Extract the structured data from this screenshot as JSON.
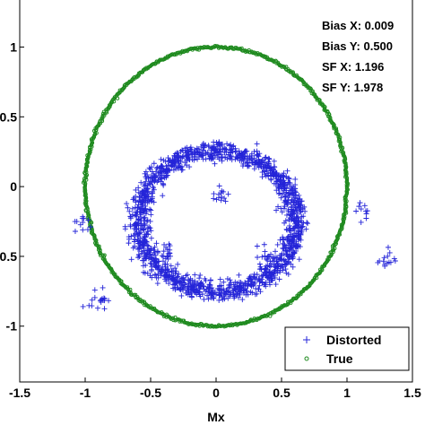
{
  "chart_data": {
    "type": "scatter",
    "title": "",
    "xlabel": "Mx",
    "ylabel": "",
    "xlim": [
      -1.5,
      1.5
    ],
    "ylim": [
      -1.4,
      1.35
    ],
    "x_ticks": [
      "-1.5",
      "-1",
      "-0.5",
      "0",
      "0.5",
      "1",
      "1.5"
    ],
    "x_tick_values": [
      -1.5,
      -1,
      -0.5,
      0,
      0.5,
      1,
      1.5
    ],
    "y_ticks": [
      "1",
      "0.5",
      "0",
      "-0.5",
      "-1"
    ],
    "y_tick_values": [
      1,
      0.5,
      0,
      -0.5,
      -1
    ],
    "grid": false,
    "legend_position": "bottom-right",
    "annotations": [
      "Bias X: 0.009",
      "Bias Y: 0.500",
      "SF X: 1.196",
      "SF Y: 1.978"
    ],
    "series": [
      {
        "name": "Distorted",
        "marker": "+",
        "color": "#2424d8",
        "shape": "ellipse",
        "center": [
          0.009,
          -0.25
        ],
        "radius_x": 0.6,
        "radius_y": 0.5,
        "outlier_clusters": [
          {
            "center": [
              0.02,
              -0.05
            ],
            "count": 14
          },
          {
            "center": [
              -0.38,
              -0.48
            ],
            "count": 18
          },
          {
            "center": [
              0.4,
              -0.5
            ],
            "count": 16
          },
          {
            "center": [
              -0.9,
              -0.8
            ],
            "count": 18
          },
          {
            "center": [
              -1.02,
              -0.28
            ],
            "count": 12
          },
          {
            "center": [
              1.12,
              -0.16
            ],
            "count": 10
          },
          {
            "center": [
              1.3,
              -0.52
            ],
            "count": 14
          }
        ]
      },
      {
        "name": "True",
        "marker": "o",
        "color": "#1e8a1e",
        "shape": "circle",
        "center": [
          0,
          0
        ],
        "radius": 1
      }
    ]
  }
}
